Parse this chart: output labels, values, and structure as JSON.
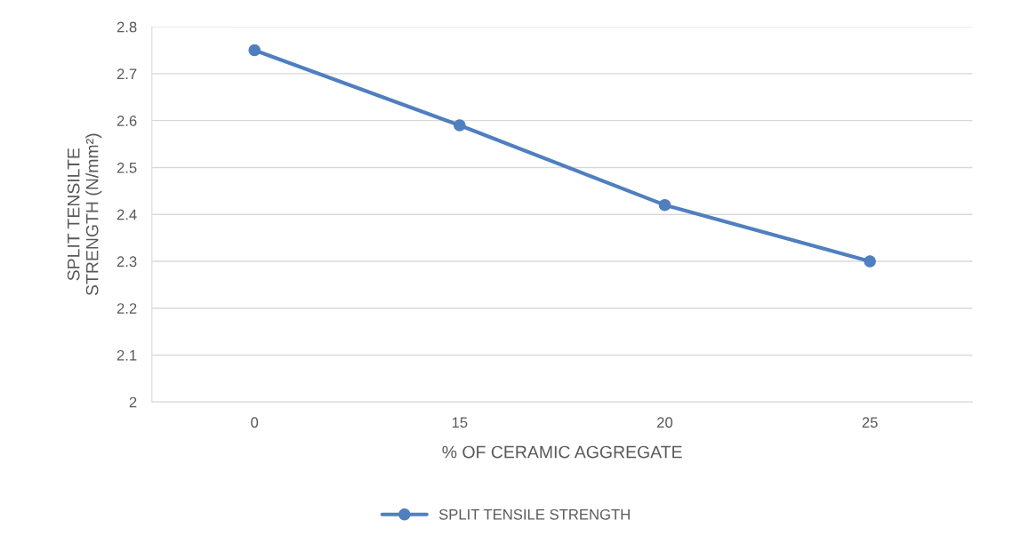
{
  "chart_data": {
    "type": "line",
    "xlabel": "% OF CERAMIC AGGREGATE",
    "ylabel": "SPLIT TENSILTE\nSTRENGTH (N/mm²)",
    "categories": [
      "0",
      "15",
      "20",
      "25"
    ],
    "series": [
      {
        "name": "SPLIT TENSILE STRENGTH",
        "color": "#4f7fbf",
        "values": [
          2.75,
          2.59,
          2.42,
          2.3
        ]
      }
    ],
    "ylim": [
      2,
      2.8
    ],
    "yticks": [
      2,
      2.1,
      2.2,
      2.3,
      2.4,
      2.5,
      2.6,
      2.7,
      2.8
    ],
    "grid": "y",
    "legend": "bottom",
    "marker": "circle",
    "line_style": "solid"
  }
}
